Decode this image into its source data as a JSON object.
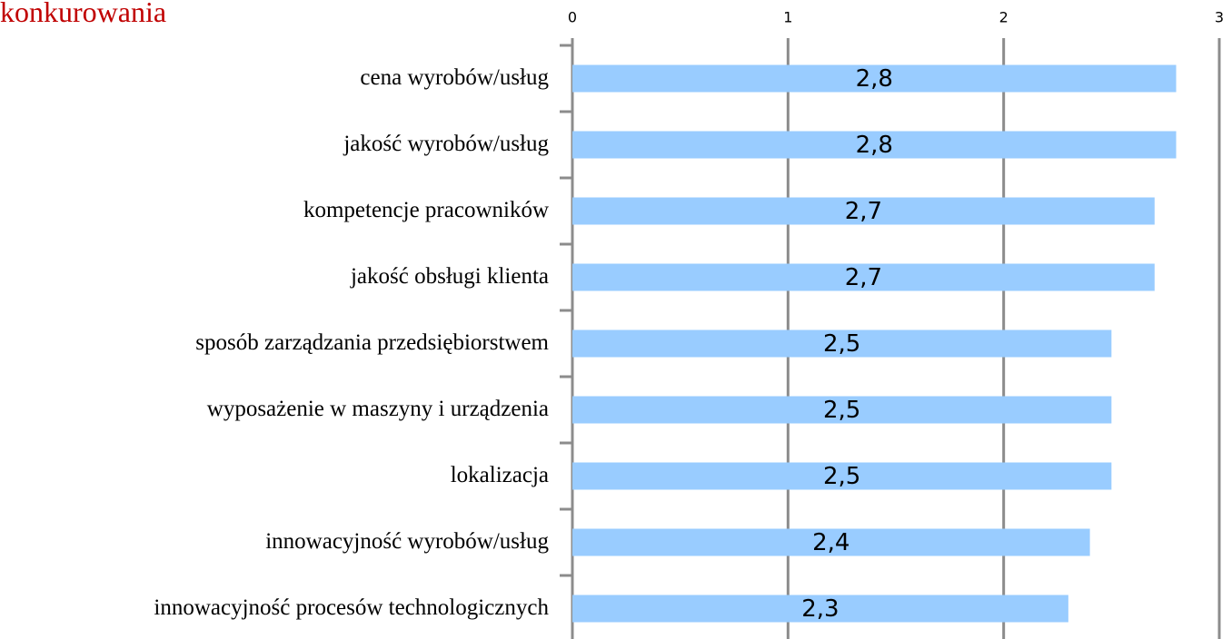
{
  "chart_data": {
    "type": "bar",
    "orientation": "horizontal",
    "title": "konkurowania",
    "categories": [
      "cena wyrobów/usług",
      "jakość wyrobów/usług",
      "kompetencje pracowników",
      "jakość obsługi klienta",
      "sposób zarządzania przedsiębiorstwem",
      "wyposażenie w maszyny i urządzenia",
      "lokalizacja",
      "innowacyjność wyrobów/usług",
      "innowacyjność procesów technologicznych"
    ],
    "values": [
      2.8,
      2.8,
      2.7,
      2.7,
      2.5,
      2.5,
      2.5,
      2.4,
      2.3
    ],
    "value_labels": [
      "2,8",
      "2,8",
      "2,7",
      "2,7",
      "2,5",
      "2,5",
      "2,5",
      "2,4",
      "2,3"
    ],
    "color": "#99ccff",
    "xlim": [
      0,
      3
    ],
    "xticks": [
      0,
      1,
      2,
      3
    ],
    "grid": true
  }
}
